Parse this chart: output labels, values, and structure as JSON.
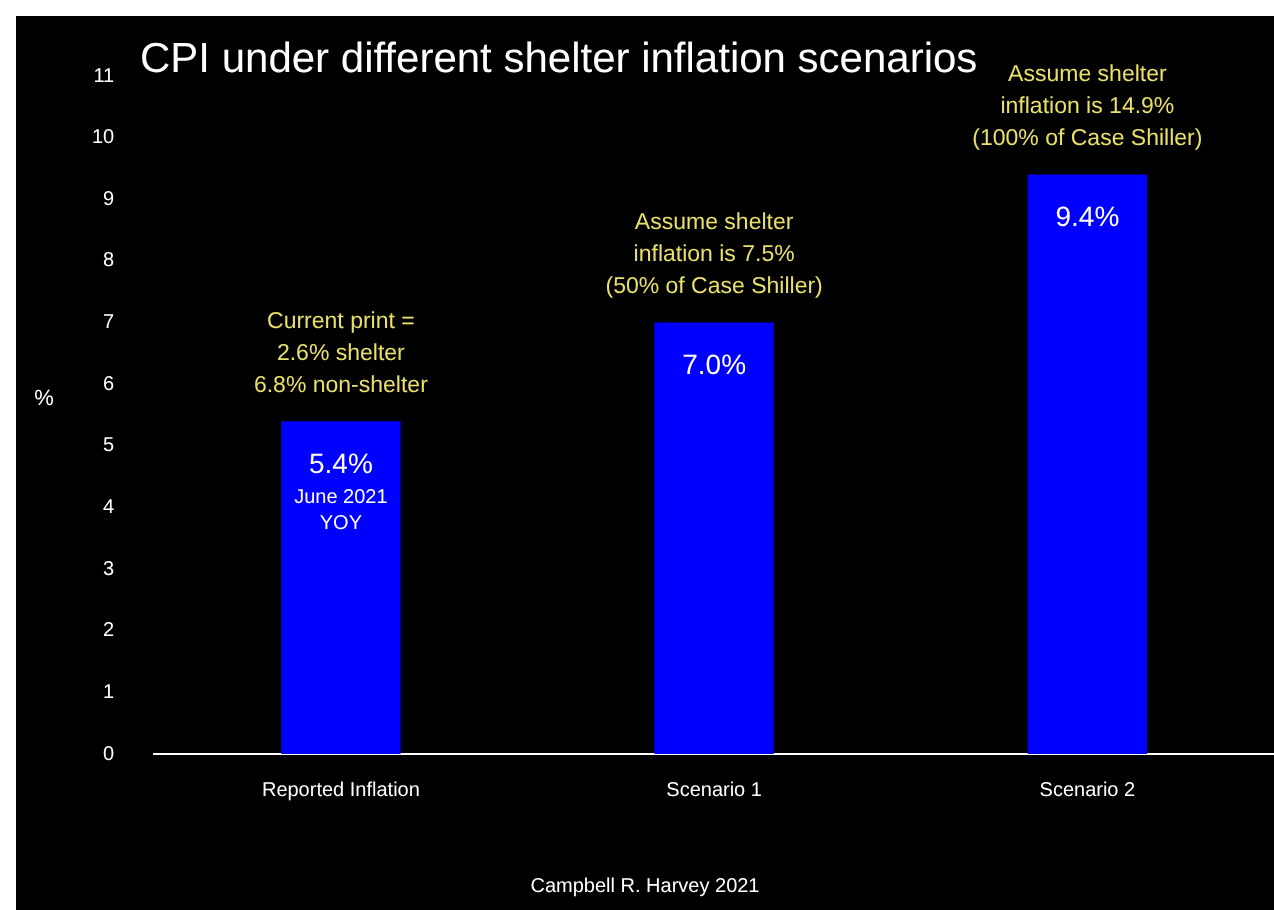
{
  "chart_data": {
    "type": "bar",
    "title": "CPI under different shelter inflation scenarios",
    "ylabel": "%",
    "categories": [
      "Reported Inflation",
      "Scenario 1",
      "Scenario 2"
    ],
    "values": [
      5.4,
      7.0,
      9.4
    ],
    "color": "#0000ff",
    "value_labels": [
      "5.4%",
      "7.0%",
      "9.4%"
    ],
    "ylim": [
      0,
      11
    ],
    "yticks": [
      0,
      1,
      2,
      3,
      4,
      5,
      6,
      7,
      8,
      9,
      10,
      11
    ],
    "grid": false,
    "legend": false,
    "annotations": [
      "Current print =\n2.6% shelter\n6.8% non-shelter",
      "June 2021\nYOY",
      "Assume shelter\ninflation is 7.5%\n(50% of Case Shiller)",
      "Assume shelter\ninflation is 14.9%\n(100% of Case Shiller)",
      "Campbell R. Harvey 2021"
    ]
  }
}
